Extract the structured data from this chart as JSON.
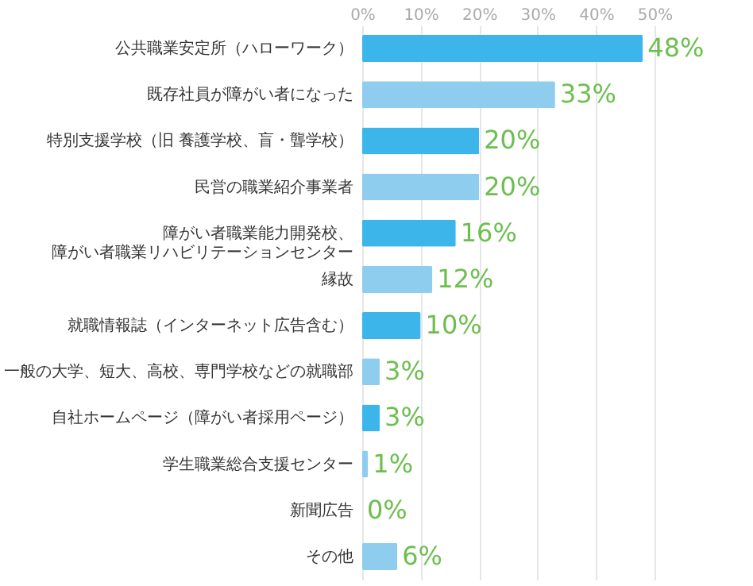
{
  "chart_data": {
    "type": "bar",
    "orientation": "horizontal",
    "categories": [
      "公共職業安定所（ハローワーク）",
      "既存社員が障がい者になった",
      "特別支援学校（旧 養護学校、盲・聾学校）",
      "民営の職業紹介事業者",
      "障がい者職業能力開発校、障がい者職業リハビリテーションセンター",
      "縁故",
      "就職情報誌（インターネット広告含む）",
      "一般の大学、短大、高校、専門学校などの就職部",
      "自社ホームページ（障がい者採用ページ）",
      "学生職業総合支援センター",
      "新聞広告",
      "その他"
    ],
    "values": [
      48,
      33,
      20,
      20,
      16,
      12,
      10,
      3,
      3,
      1,
      0,
      6
    ],
    "colors": [
      "#3bb5ea",
      "#8fcdef",
      "#3bb5ea",
      "#8fcdef",
      "#3bb5ea",
      "#8fcdef",
      "#3bb5ea",
      "#8fcdef",
      "#3bb5ea",
      "#8fcdef",
      "#3bb5ea",
      "#8fcdef"
    ],
    "value_labels": [
      "48%",
      "33%",
      "20%",
      "20%",
      "16%",
      "12%",
      "10%",
      "3%",
      "3%",
      "1%",
      "0%",
      "6%"
    ],
    "xlim": [
      0,
      50
    ],
    "xticks": [
      {
        "value": 0,
        "label": "0%"
      },
      {
        "value": 10,
        "label": "10%"
      },
      {
        "value": 20,
        "label": "20%"
      },
      {
        "value": 30,
        "label": "30%"
      },
      {
        "value": 40,
        "label": "40%"
      },
      {
        "value": 50,
        "label": "50%"
      }
    ],
    "grid": "x"
  }
}
